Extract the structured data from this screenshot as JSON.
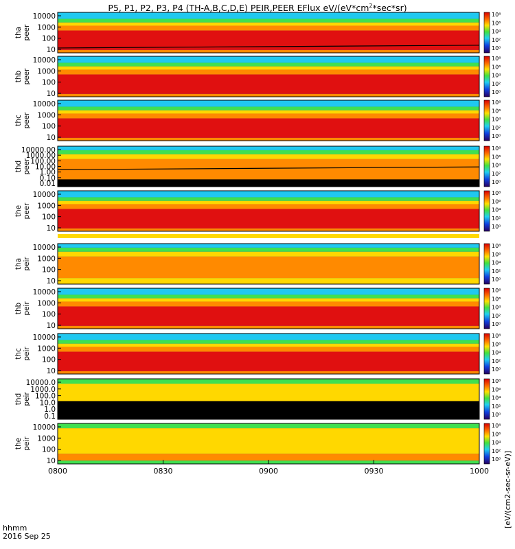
{
  "title": {
    "main": "P5, P1, P2, P3, P4 (TH-A,B,C,D,E) PEIR,PEER EFlux eV/(eV*cm",
    "sup": "2",
    "tail": "*sec*sr)"
  },
  "colorbar_label": "[eV/(cm2-sec-sr-eV)]",
  "colorbar_ticks": [
    "10⁸",
    "10⁶",
    "10⁴",
    "10²",
    "10⁰"
  ],
  "time_label": "hhmm",
  "date_label": "2016 Sep 25",
  "x_ticks": [
    "0800",
    "0830",
    "0900",
    "0930",
    "1000"
  ],
  "colors": {
    "red": "#e01010",
    "orange": "#ff8a00",
    "yellow": "#ffd800",
    "green": "#40e050",
    "cyan": "#20c8f0",
    "blue": "#1030c8",
    "black": "#000000"
  },
  "chart_data": {
    "type": "heatmap",
    "x_range": [
      "0800",
      "1000"
    ],
    "y_scale": "log",
    "panels": [
      {
        "probe": "tha",
        "species": "peer",
        "y_ticks": [
          "10000",
          "1000",
          "100",
          "10"
        ],
        "core": "red",
        "has_trace": true
      },
      {
        "probe": "thb",
        "species": "peer",
        "y_ticks": [
          "10000",
          "1000",
          "100",
          "10"
        ],
        "core": "red",
        "has_trace": false
      },
      {
        "probe": "thc",
        "species": "peer",
        "y_ticks": [
          "10000",
          "1000",
          "100",
          "10"
        ],
        "core": "red",
        "has_trace": false
      },
      {
        "probe": "thd",
        "species": "peer",
        "y_ticks": [
          "10000.00",
          "1000.00",
          "100.00",
          "10.00",
          "1.00",
          "0.10",
          "0.01"
        ],
        "core": "orange",
        "has_trace": true
      },
      {
        "probe": "the",
        "species": "peer",
        "y_ticks": [
          "10000",
          "1000",
          "100",
          "10"
        ],
        "core": "red",
        "has_trace": false
      },
      {
        "probe": "tha",
        "species": "peir",
        "y_ticks": [
          "10000",
          "1000",
          "100",
          "10"
        ],
        "core": "orange",
        "has_trace": false
      },
      {
        "probe": "thb",
        "species": "peir",
        "y_ticks": [
          "10000",
          "1000",
          "100",
          "10"
        ],
        "core": "red",
        "has_trace": false
      },
      {
        "probe": "thc",
        "species": "peir",
        "y_ticks": [
          "10000",
          "1000",
          "100",
          "10"
        ],
        "core": "red",
        "has_trace": false
      },
      {
        "probe": "thd",
        "species": "peir",
        "y_ticks": [
          "10000.0",
          "1000.0",
          "100.0",
          "10.0",
          "1.0",
          "0.1"
        ],
        "core": "yellow",
        "has_trace": false
      },
      {
        "probe": "the",
        "species": "peir",
        "y_ticks": [
          "10000",
          "1000",
          "100",
          "10"
        ],
        "core": "yellow",
        "has_trace": false
      }
    ]
  }
}
